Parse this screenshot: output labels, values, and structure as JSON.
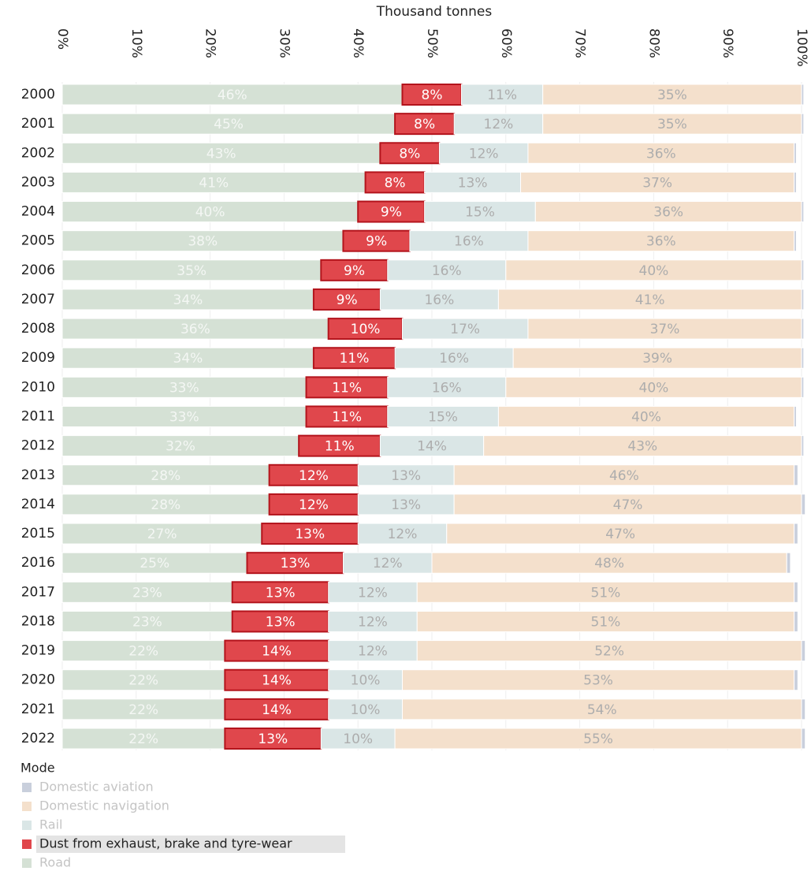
{
  "chart_data": {
    "type": "stacked_bar_horizontal",
    "title": "Thousand tonnes",
    "legend_title": "Mode",
    "categories": [
      "2000",
      "2001",
      "2002",
      "2003",
      "2004",
      "2005",
      "2006",
      "2007",
      "2008",
      "2009",
      "2010",
      "2011",
      "2012",
      "2013",
      "2014",
      "2015",
      "2016",
      "2017",
      "2018",
      "2019",
      "2020",
      "2021",
      "2022"
    ],
    "xlim": [
      0,
      100
    ],
    "xticks": [
      {
        "value": 0,
        "label": "0%"
      },
      {
        "value": 10,
        "label": "10%"
      },
      {
        "value": 20,
        "label": "20%"
      },
      {
        "value": 30,
        "label": "30%"
      },
      {
        "value": 40,
        "label": "40%"
      },
      {
        "value": 50,
        "label": "50%"
      },
      {
        "value": 60,
        "label": "60%"
      },
      {
        "value": 70,
        "label": "70%"
      },
      {
        "value": 80,
        "label": "80%"
      },
      {
        "value": 90,
        "label": "90%"
      },
      {
        "value": 100,
        "label": "100%"
      }
    ],
    "grid": true,
    "series": [
      {
        "name": "Road",
        "color": "#d5e1d5",
        "label_color": "#f4f7f4",
        "values": [
          46,
          45,
          43,
          41,
          40,
          38,
          35,
          34,
          36,
          34,
          33,
          33,
          32,
          28,
          28,
          27,
          25,
          23,
          23,
          22,
          22,
          22,
          22
        ],
        "value_labels": [
          "46%",
          "45%",
          "43%",
          "41%",
          "40%",
          "38%",
          "35%",
          "34%",
          "36%",
          "34%",
          "33%",
          "33%",
          "32%",
          "28%",
          "28%",
          "27%",
          "25%",
          "23%",
          "23%",
          "22%",
          "22%",
          "22%",
          "22%"
        ]
      },
      {
        "name": "Dust from exhaust, brake and tyre-wear",
        "color": "#e0474c",
        "label_color": "#ffffff",
        "highlighted": true,
        "values": [
          8,
          8,
          8,
          8,
          9,
          9,
          9,
          9,
          10,
          11,
          11,
          11,
          11,
          12,
          12,
          13,
          13,
          13,
          13,
          14,
          14,
          14,
          13
        ],
        "value_labels": [
          "8%",
          "8%",
          "8%",
          "8%",
          "9%",
          "9%",
          "9%",
          "9%",
          "10%",
          "11%",
          "11%",
          "11%",
          "11%",
          "12%",
          "12%",
          "13%",
          "13%",
          "13%",
          "13%",
          "14%",
          "14%",
          "14%",
          "13%"
        ]
      },
      {
        "name": "Rail",
        "color": "#dae6e6",
        "label_color": "#adadad",
        "values": [
          11,
          12,
          12,
          13,
          15,
          16,
          16,
          16,
          17,
          16,
          16,
          15,
          14,
          13,
          13,
          12,
          12,
          12,
          12,
          12,
          10,
          10,
          10
        ],
        "value_labels": [
          "11%",
          "12%",
          "12%",
          "13%",
          "15%",
          "16%",
          "16%",
          "16%",
          "17%",
          "16%",
          "16%",
          "15%",
          "14%",
          "13%",
          "13%",
          "12%",
          "12%",
          "12%",
          "12%",
          "12%",
          "10%",
          "10%",
          "10%"
        ]
      },
      {
        "name": "Domestic navigation",
        "color": "#f4e0cc",
        "label_color": "#adadad",
        "values": [
          35,
          35,
          36,
          37,
          36,
          36,
          40,
          41,
          37,
          39,
          40,
          40,
          43,
          46,
          47,
          47,
          48,
          51,
          51,
          52,
          53,
          54,
          55
        ],
        "value_labels": [
          "35%",
          "35%",
          "36%",
          "37%",
          "36%",
          "36%",
          "40%",
          "41%",
          "37%",
          "39%",
          "40%",
          "40%",
          "43%",
          "46%",
          "47%",
          "47%",
          "48%",
          "51%",
          "51%",
          "52%",
          "53%",
          "54%",
          "55%"
        ]
      },
      {
        "name": "Domestic aviation",
        "color": "#c9cfdc",
        "values": [
          0.3,
          0.3,
          0.3,
          0.3,
          0.3,
          0.3,
          0.3,
          0.3,
          0.3,
          0.3,
          0.3,
          0.3,
          0.3,
          0.5,
          0.5,
          0.5,
          0.5,
          0.5,
          0.5,
          0.5,
          0.5,
          0.5,
          0.5
        ]
      }
    ]
  }
}
